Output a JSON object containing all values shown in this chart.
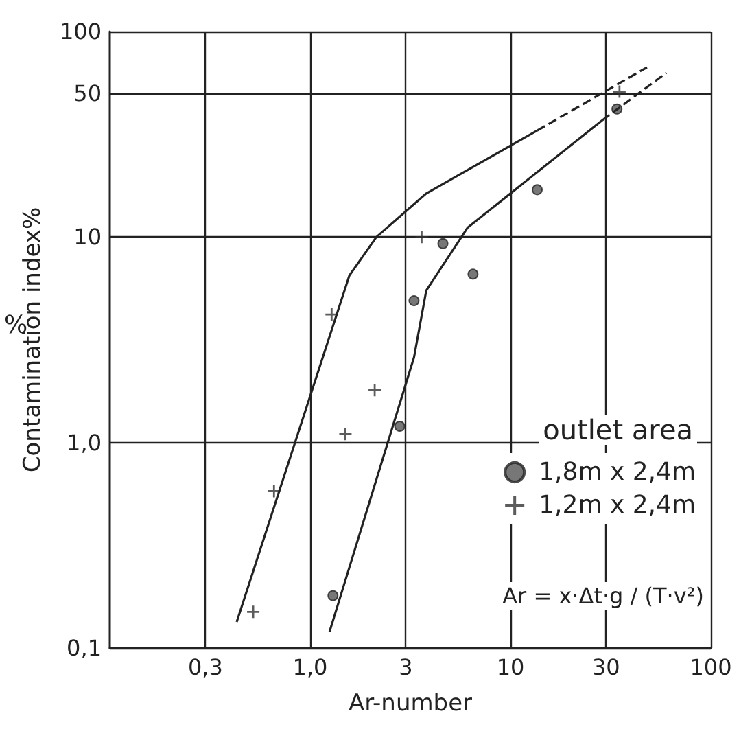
{
  "chart_data": {
    "type": "scatter",
    "xlabel": "Ar-number",
    "ylabel": "Contamination index%",
    "legend_title": "outlet area",
    "log": "xy",
    "grid": true,
    "legend": "bottom right",
    "xlim": [
      0.1,
      100
    ],
    "ylim": [
      0.1,
      100
    ],
    "xticks": [
      {
        "value": 0.3,
        "label": "0,3"
      },
      {
        "value": 1,
        "label": "1,0"
      },
      3,
      10,
      30,
      100
    ],
    "yticks": [
      {
        "value": 0.1,
        "label": "0,1"
      },
      {
        "value": 1,
        "label": "1,0"
      },
      10,
      50,
      100
    ],
    "annotations": [
      "%",
      "Ar = x·Δt·g / (T·v²)"
    ],
    "series": [
      {
        "name": "1,8m x 2,4m",
        "marker": "circle",
        "color": "#555555",
        "x": [
          1.3,
          2.8,
          3.3,
          4.6,
          6.5,
          13.6,
          34
        ],
        "values": [
          0.18,
          1.2,
          4.9,
          9.3,
          6.6,
          17,
          42
        ]
      },
      {
        "name": "1,2m x 2,4m",
        "marker": "cross",
        "color": "#333333",
        "x": [
          0.52,
          0.66,
          1.5,
          2.1,
          1.28,
          3.6,
          35
        ],
        "values": [
          0.15,
          0.58,
          1.1,
          1.8,
          4.2,
          10,
          51
        ]
      },
      {
        "type": "line",
        "marker": "none",
        "line_style": "solid",
        "color": "#222222",
        "x": [
          0.43,
          1.57,
          2.14,
          3.8,
          13.6
        ],
        "values": [
          0.134,
          6.5,
          10,
          16.3,
          33
        ]
      },
      {
        "type": "line",
        "marker": "none",
        "line_style": "dashed",
        "color": "#222222",
        "x": [
          13.6,
          48
        ],
        "values": [
          33,
          67
        ]
      },
      {
        "type": "line",
        "marker": "none",
        "line_style": "solid",
        "color": "#222222",
        "x": [
          1.25,
          3.3,
          3.8,
          6.1,
          28.7
        ],
        "values": [
          0.12,
          2.6,
          5.5,
          11.1,
          37
        ]
      },
      {
        "type": "line",
        "marker": "none",
        "line_style": "dashed",
        "color": "#222222",
        "x": [
          28.7,
          60
        ],
        "values": [
          37,
          63
        ]
      }
    ]
  }
}
